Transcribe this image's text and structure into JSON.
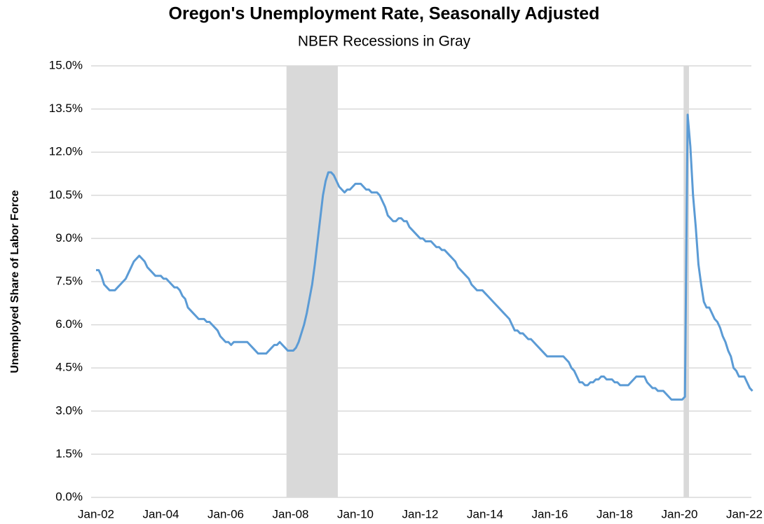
{
  "chart_data": {
    "type": "line",
    "title": "Oregon's Unemployment Rate, Seasonally Adjusted",
    "subtitle": "NBER Recessions in Gray",
    "y_label": "Unemployed Share of Labor Force",
    "color": "#5b9bd5",
    "shade_color": "#d9d9d9",
    "recessions": [
      [
        71,
        89
      ],
      [
        218,
        219
      ]
    ],
    "grid": true,
    "ylim": [
      0,
      15
    ],
    "yticks": [
      {
        "value": 0,
        "label": "0.0%"
      },
      {
        "value": 1.5,
        "label": "1.5%"
      },
      {
        "value": 3,
        "label": "3.0%"
      },
      {
        "value": 4.5,
        "label": "4.5%"
      },
      {
        "value": 6,
        "label": "6.0%"
      },
      {
        "value": 7.5,
        "label": "7.5%"
      },
      {
        "value": 9,
        "label": "9.0%"
      },
      {
        "value": 10.5,
        "label": "10.5%"
      },
      {
        "value": 12,
        "label": "12.0%"
      },
      {
        "value": 13.5,
        "label": "13.5%"
      },
      {
        "value": 15,
        "label": "15.0%"
      }
    ],
    "categories": [
      "Jan-02",
      null,
      null,
      null,
      null,
      null,
      null,
      null,
      null,
      null,
      null,
      null,
      null,
      null,
      null,
      null,
      null,
      null,
      null,
      null,
      null,
      null,
      null,
      null,
      "Jan-04",
      null,
      null,
      null,
      null,
      null,
      null,
      null,
      null,
      null,
      null,
      null,
      null,
      null,
      null,
      null,
      null,
      null,
      null,
      null,
      null,
      null,
      null,
      null,
      "Jan-06",
      null,
      null,
      null,
      null,
      null,
      null,
      null,
      null,
      null,
      null,
      null,
      null,
      null,
      null,
      null,
      null,
      null,
      null,
      null,
      null,
      null,
      null,
      null,
      "Jan-08",
      null,
      null,
      null,
      null,
      null,
      null,
      null,
      null,
      null,
      null,
      null,
      null,
      null,
      null,
      null,
      null,
      null,
      null,
      null,
      null,
      null,
      null,
      null,
      "Jan-10",
      null,
      null,
      null,
      null,
      null,
      null,
      null,
      null,
      null,
      null,
      null,
      null,
      null,
      null,
      null,
      null,
      null,
      null,
      null,
      null,
      null,
      null,
      null,
      "Jan-12",
      null,
      null,
      null,
      null,
      null,
      null,
      null,
      null,
      null,
      null,
      null,
      null,
      null,
      null,
      null,
      null,
      null,
      null,
      null,
      null,
      null,
      null,
      null,
      "Jan-14",
      null,
      null,
      null,
      null,
      null,
      null,
      null,
      null,
      null,
      null,
      null,
      null,
      null,
      null,
      null,
      null,
      null,
      null,
      null,
      null,
      null,
      null,
      null,
      "Jan-16",
      null,
      null,
      null,
      null,
      null,
      null,
      null,
      null,
      null,
      null,
      null,
      null,
      null,
      null,
      null,
      null,
      null,
      null,
      null,
      null,
      null,
      null,
      null,
      "Jan-18",
      null,
      null,
      null,
      null,
      null,
      null,
      null,
      null,
      null,
      null,
      null,
      null,
      null,
      null,
      null,
      null,
      null,
      null,
      null,
      null,
      null,
      null,
      null,
      "Jan-20",
      null,
      null,
      null,
      null,
      null,
      null,
      null,
      null,
      null,
      null,
      null,
      null,
      null,
      null,
      null,
      null,
      null,
      null,
      null,
      null,
      null,
      null,
      null,
      "Jan-22",
      null,
      null,
      null
    ],
    "values": [
      7.9,
      7.9,
      7.7,
      7.4,
      7.3,
      7.2,
      7.2,
      7.2,
      7.3,
      7.4,
      7.5,
      7.6,
      7.8,
      8.0,
      8.2,
      8.3,
      8.4,
      8.3,
      8.2,
      8.0,
      7.9,
      7.8,
      7.7,
      7.7,
      7.7,
      7.6,
      7.6,
      7.5,
      7.4,
      7.3,
      7.3,
      7.2,
      7.0,
      6.9,
      6.6,
      6.5,
      6.4,
      6.3,
      6.2,
      6.2,
      6.2,
      6.1,
      6.1,
      6.0,
      5.9,
      5.8,
      5.6,
      5.5,
      5.4,
      5.4,
      5.3,
      5.4,
      5.4,
      5.4,
      5.4,
      5.4,
      5.4,
      5.3,
      5.2,
      5.1,
      5.0,
      5.0,
      5.0,
      5.0,
      5.1,
      5.2,
      5.3,
      5.3,
      5.4,
      5.3,
      5.2,
      5.1,
      5.1,
      5.1,
      5.2,
      5.4,
      5.7,
      6.0,
      6.4,
      6.9,
      7.4,
      8.1,
      8.9,
      9.7,
      10.5,
      11.0,
      11.3,
      11.3,
      11.2,
      11.0,
      10.8,
      10.7,
      10.6,
      10.7,
      10.7,
      10.8,
      10.9,
      10.9,
      10.9,
      10.8,
      10.7,
      10.7,
      10.6,
      10.6,
      10.6,
      10.5,
      10.3,
      10.1,
      9.8,
      9.7,
      9.6,
      9.6,
      9.7,
      9.7,
      9.6,
      9.6,
      9.4,
      9.3,
      9.2,
      9.1,
      9.0,
      9.0,
      8.9,
      8.9,
      8.9,
      8.8,
      8.7,
      8.7,
      8.6,
      8.6,
      8.5,
      8.4,
      8.3,
      8.2,
      8.0,
      7.9,
      7.8,
      7.7,
      7.6,
      7.4,
      7.3,
      7.2,
      7.2,
      7.2,
      7.1,
      7.0,
      6.9,
      6.8,
      6.7,
      6.6,
      6.5,
      6.4,
      6.3,
      6.2,
      6.0,
      5.8,
      5.8,
      5.7,
      5.7,
      5.6,
      5.5,
      5.5,
      5.4,
      5.3,
      5.2,
      5.1,
      5.0,
      4.9,
      4.9,
      4.9,
      4.9,
      4.9,
      4.9,
      4.9,
      4.8,
      4.7,
      4.5,
      4.4,
      4.2,
      4.0,
      4.0,
      3.9,
      3.9,
      4.0,
      4.0,
      4.1,
      4.1,
      4.2,
      4.2,
      4.1,
      4.1,
      4.1,
      4.0,
      4.0,
      3.9,
      3.9,
      3.9,
      3.9,
      4.0,
      4.1,
      4.2,
      4.2,
      4.2,
      4.2,
      4.0,
      3.9,
      3.8,
      3.8,
      3.7,
      3.7,
      3.7,
      3.6,
      3.5,
      3.4,
      3.4,
      3.4,
      3.4,
      3.4,
      3.5,
      13.3,
      12.2,
      10.5,
      9.4,
      8.1,
      7.4,
      6.8,
      6.6,
      6.6,
      6.4,
      6.2,
      6.1,
      5.9,
      5.6,
      5.4,
      5.1,
      4.9,
      4.5,
      4.4,
      4.2,
      4.2,
      4.2,
      4.0,
      3.8,
      3.7
    ]
  }
}
